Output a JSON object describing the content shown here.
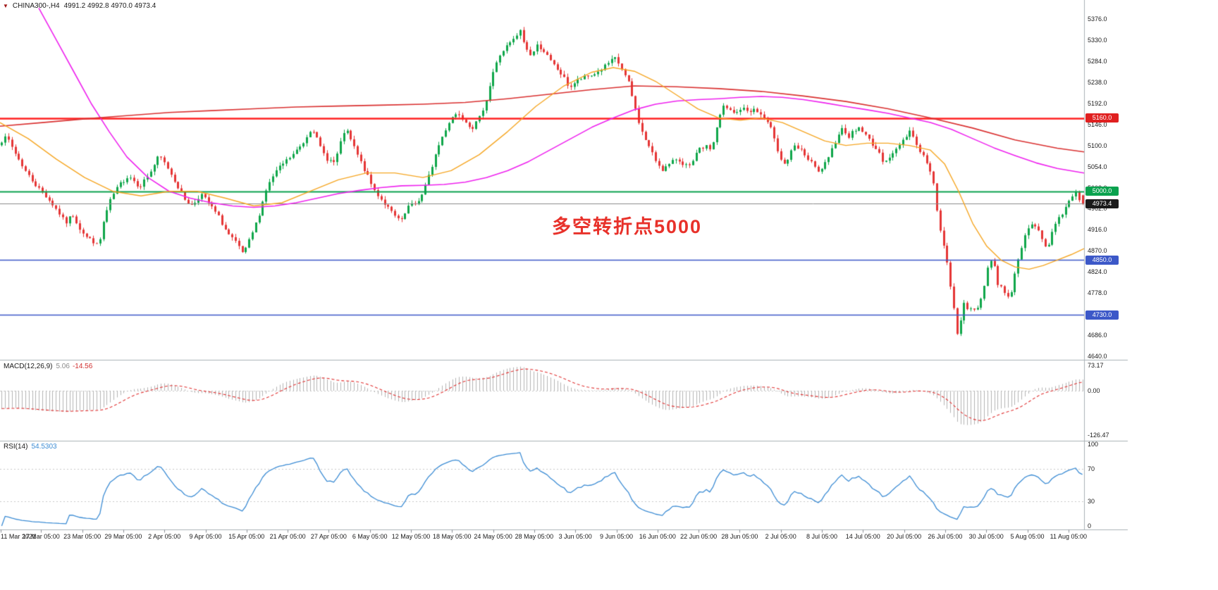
{
  "header": {
    "icon": "▼",
    "symbol": "CHINA300-,H4",
    "ohlc": "4991.2 4992.8 4970.0 4973.4"
  },
  "annotation": {
    "text": "多空转折点5000",
    "color": "#e8312a"
  },
  "price_axis": {
    "max": 5376.0,
    "min": 4640.0,
    "step": 46.0,
    "labels": [
      "5376.0",
      "5330.0",
      "5284.0",
      "5238.0",
      "5192.0",
      "5146.0",
      "5100.0",
      "5054.0",
      "5008.0",
      "4962.0",
      "4916.0",
      "4870.0",
      "4824.0",
      "4778.0",
      "4732.0",
      "4686.0",
      "4640.0"
    ]
  },
  "time_axis": {
    "labels": [
      "11 Mar 2021",
      "17 Mar 05:00",
      "23 Mar 05:00",
      "29 Mar 05:00",
      "2 Apr 05:00",
      "9 Apr 05:00",
      "15 Apr 05:00",
      "21 Apr 05:00",
      "27 Apr 05:00",
      "6 May 05:00",
      "12 May 05:00",
      "18 May 05:00",
      "24 May 05:00",
      "28 May 05:00",
      "3 Jun 05:00",
      "9 Jun 05:00",
      "16 Jun 05:00",
      "22 Jun 05:00",
      "28 Jun 05:00",
      "2 Jul 05:00",
      "8 Jul 05:00",
      "14 Jul 05:00",
      "20 Jul 05:00",
      "26 Jul 05:00",
      "30 Jul 05:00",
      "5 Aug 05:00",
      "11 Aug 05:00"
    ]
  },
  "levels": [
    {
      "name": "resistance-5160",
      "price": 5160.0,
      "label": "5160.0",
      "color": "#ff2020",
      "badge": "#e02020",
      "line_width": 2.4
    },
    {
      "name": "pivot-5000",
      "price": 5000.0,
      "label": "5000.0",
      "color": "#0aa24e",
      "badge": "#0aa24e",
      "line_width": 2.0
    },
    {
      "name": "current-price",
      "price": 4973.4,
      "label": "4973.4",
      "color": "#8a8a8a",
      "badge": "#1a1a1a",
      "line_width": 1.0
    },
    {
      "name": "support-4850",
      "price": 4850.0,
      "label": "4850.0",
      "color": "#3c58c8",
      "badge": "#3c58c8",
      "line_width": 1.6
    },
    {
      "name": "support-4730",
      "price": 4730.0,
      "label": "4730.0",
      "color": "#3c58c8",
      "badge": "#3c58c8",
      "line_width": 1.6
    }
  ],
  "indicators": {
    "macd": {
      "label": "MACD(12,26,9)",
      "value_main": "5.06",
      "value_signal": "-14.56",
      "axis": [
        "73.17",
        "0.00",
        "-126.47"
      ],
      "axis_max": 73.17,
      "axis_min": -126.47,
      "histogram_color": "#b3b3b3",
      "signal_color": "#e03030"
    },
    "rsi": {
      "label": "RSI(14)",
      "value": "54.5303",
      "period": 14,
      "axis": [
        100,
        70,
        30,
        0
      ],
      "levels": [
        70,
        30
      ],
      "line_color": "#3c8cd4"
    }
  },
  "chart_data": {
    "type": "candlestick",
    "title": "CHINA300-,H4",
    "symbol": "CHINA300-",
    "timeframe": "H4",
    "visible_range": {
      "start": "11 Mar 2021",
      "end": "11 Aug 05:00"
    },
    "ylim": [
      4640.0,
      5376.0
    ],
    "current_bar": {
      "open": 4991.2,
      "high": 4992.8,
      "low": 4970.0,
      "close": 4973.4
    },
    "key_levels": [
      5160.0,
      5000.0,
      4973.4,
      4850.0,
      4730.0
    ],
    "candles": {
      "count": 320,
      "up_color": "#0fa64a",
      "down_color": "#e53535",
      "noise": 9,
      "seed": 7
    },
    "price_path": [
      [
        0,
        5105
      ],
      [
        12,
        5118
      ],
      [
        25,
        5080
      ],
      [
        40,
        5040
      ],
      [
        55,
        5010
      ],
      [
        70,
        4985
      ],
      [
        85,
        4955
      ],
      [
        95,
        4930
      ],
      [
        105,
        4950
      ],
      [
        115,
        4920
      ],
      [
        125,
        4900
      ],
      [
        135,
        4890
      ],
      [
        142,
        4878
      ],
      [
        150,
        4940
      ],
      [
        160,
        4985
      ],
      [
        172,
        5015
      ],
      [
        185,
        5035
      ],
      [
        200,
        5010
      ],
      [
        215,
        5040
      ],
      [
        228,
        5078
      ],
      [
        240,
        5052
      ],
      [
        252,
        5018
      ],
      [
        263,
        4985
      ],
      [
        275,
        4968
      ],
      [
        287,
        4995
      ],
      [
        300,
        4970
      ],
      [
        312,
        4945
      ],
      [
        325,
        4908
      ],
      [
        338,
        4885
      ],
      [
        348,
        4862
      ],
      [
        358,
        4900
      ],
      [
        368,
        4940
      ],
      [
        380,
        5005
      ],
      [
        392,
        5040
      ],
      [
        405,
        5062
      ],
      [
        418,
        5080
      ],
      [
        432,
        5105
      ],
      [
        445,
        5142
      ],
      [
        455,
        5100
      ],
      [
        465,
        5072
      ],
      [
        477,
        5062
      ],
      [
        492,
        5138
      ],
      [
        502,
        5105
      ],
      [
        512,
        5070
      ],
      [
        522,
        5038
      ],
      [
        532,
        5005
      ],
      [
        542,
        4985
      ],
      [
        552,
        4965
      ],
      [
        562,
        4945
      ],
      [
        572,
        4935
      ],
      [
        582,
        4968
      ],
      [
        592,
        4972
      ],
      [
        602,
        4995
      ],
      [
        612,
        5040
      ],
      [
        622,
        5090
      ],
      [
        632,
        5128
      ],
      [
        642,
        5160
      ],
      [
        652,
        5172
      ],
      [
        662,
        5155
      ],
      [
        672,
        5138
      ],
      [
        682,
        5158
      ],
      [
        692,
        5200
      ],
      [
        702,
        5262
      ],
      [
        712,
        5300
      ],
      [
        722,
        5318
      ],
      [
        732,
        5332
      ],
      [
        740,
        5350
      ],
      [
        748,
        5312
      ],
      [
        756,
        5296
      ],
      [
        765,
        5320
      ],
      [
        774,
        5306
      ],
      [
        783,
        5284
      ],
      [
        792,
        5268
      ],
      [
        801,
        5250
      ],
      [
        810,
        5226
      ],
      [
        820,
        5240
      ],
      [
        830,
        5248
      ],
      [
        840,
        5252
      ],
      [
        852,
        5262
      ],
      [
        864,
        5278
      ],
      [
        875,
        5290
      ],
      [
        884,
        5268
      ],
      [
        894,
        5236
      ],
      [
        903,
        5182
      ],
      [
        912,
        5132
      ],
      [
        922,
        5100
      ],
      [
        932,
        5068
      ],
      [
        942,
        5048
      ],
      [
        952,
        5058
      ],
      [
        962,
        5072
      ],
      [
        972,
        5060
      ],
      [
        982,
        5052
      ],
      [
        992,
        5088
      ],
      [
        1002,
        5098
      ],
      [
        1012,
        5092
      ],
      [
        1020,
        5148
      ],
      [
        1028,
        5185
      ],
      [
        1036,
        5178
      ],
      [
        1045,
        5168
      ],
      [
        1054,
        5182
      ],
      [
        1063,
        5175
      ],
      [
        1072,
        5178
      ],
      [
        1081,
        5168
      ],
      [
        1090,
        5150
      ],
      [
        1099,
        5128
      ],
      [
        1107,
        5082
      ],
      [
        1114,
        5058
      ],
      [
        1121,
        5072
      ],
      [
        1128,
        5098
      ],
      [
        1135,
        5092
      ],
      [
        1142,
        5085
      ],
      [
        1149,
        5068
      ],
      [
        1156,
        5058
      ],
      [
        1163,
        5040
      ],
      [
        1170,
        5055
      ],
      [
        1177,
        5068
      ],
      [
        1184,
        5098
      ],
      [
        1191,
        5125
      ],
      [
        1198,
        5138
      ],
      [
        1206,
        5120
      ],
      [
        1214,
        5132
      ],
      [
        1222,
        5140
      ],
      [
        1230,
        5122
      ],
      [
        1238,
        5108
      ],
      [
        1246,
        5090
      ],
      [
        1254,
        5068
      ],
      [
        1262,
        5072
      ],
      [
        1270,
        5082
      ],
      [
        1278,
        5102
      ],
      [
        1286,
        5118
      ],
      [
        1294,
        5135
      ],
      [
        1302,
        5102
      ],
      [
        1310,
        5082
      ],
      [
        1318,
        5060
      ],
      [
        1326,
        5020
      ],
      [
        1332,
        4955
      ],
      [
        1338,
        4900
      ],
      [
        1344,
        4858
      ],
      [
        1350,
        4800
      ],
      [
        1356,
        4735
      ],
      [
        1361,
        4678
      ],
      [
        1365,
        4720
      ],
      [
        1370,
        4762
      ],
      [
        1375,
        4745
      ],
      [
        1381,
        4738
      ],
      [
        1387,
        4742
      ],
      [
        1393,
        4760
      ],
      [
        1399,
        4800
      ],
      [
        1405,
        4845
      ],
      [
        1411,
        4852
      ],
      [
        1417,
        4800
      ],
      [
        1423,
        4790
      ],
      [
        1429,
        4778
      ],
      [
        1435,
        4768
      ],
      [
        1441,
        4810
      ],
      [
        1447,
        4858
      ],
      [
        1453,
        4888
      ],
      [
        1459,
        4910
      ],
      [
        1466,
        4928
      ],
      [
        1473,
        4920
      ],
      [
        1480,
        4900
      ],
      [
        1487,
        4872
      ],
      [
        1494,
        4908
      ],
      [
        1501,
        4932
      ],
      [
        1508,
        4950
      ],
      [
        1515,
        4968
      ],
      [
        1521,
        4988
      ],
      [
        1527,
        4999
      ],
      [
        1532,
        4985
      ],
      [
        1538,
        4973
      ]
    ],
    "moving_averages": [
      {
        "name": "slow-ma-magenta",
        "color": "#ee22ee",
        "width": 1.6,
        "path": [
          [
            55,
            5400
          ],
          [
            80,
            5330
          ],
          [
            105,
            5260
          ],
          [
            130,
            5190
          ],
          [
            155,
            5130
          ],
          [
            180,
            5075
          ],
          [
            210,
            5030
          ],
          [
            240,
            5000
          ],
          [
            270,
            4985
          ],
          [
            300,
            4975
          ],
          [
            330,
            4968
          ],
          [
            360,
            4965
          ],
          [
            390,
            4968
          ],
          [
            420,
            4975
          ],
          [
            450,
            4985
          ],
          [
            480,
            4995
          ],
          [
            510,
            5002
          ],
          [
            540,
            5008
          ],
          [
            570,
            5012
          ],
          [
            600,
            5013
          ],
          [
            630,
            5015
          ],
          [
            660,
            5020
          ],
          [
            690,
            5030
          ],
          [
            720,
            5045
          ],
          [
            750,
            5065
          ],
          [
            780,
            5090
          ],
          [
            810,
            5115
          ],
          [
            840,
            5140
          ],
          [
            870,
            5160
          ],
          [
            900,
            5178
          ],
          [
            930,
            5190
          ],
          [
            960,
            5197
          ],
          [
            990,
            5200
          ],
          [
            1020,
            5202
          ],
          [
            1050,
            5205
          ],
          [
            1080,
            5207
          ],
          [
            1110,
            5205
          ],
          [
            1140,
            5200
          ],
          [
            1170,
            5193
          ],
          [
            1200,
            5185
          ],
          [
            1230,
            5178
          ],
          [
            1260,
            5170
          ],
          [
            1290,
            5160
          ],
          [
            1320,
            5150
          ],
          [
            1350,
            5135
          ],
          [
            1380,
            5115
          ],
          [
            1410,
            5095
          ],
          [
            1440,
            5078
          ],
          [
            1470,
            5062
          ],
          [
            1500,
            5050
          ],
          [
            1538,
            5040
          ]
        ]
      },
      {
        "name": "long-ma-red",
        "color": "#d93030",
        "width": 1.6,
        "path": [
          [
            0,
            5142
          ],
          [
            60,
            5150
          ],
          [
            120,
            5158
          ],
          [
            180,
            5165
          ],
          [
            240,
            5172
          ],
          [
            300,
            5176
          ],
          [
            360,
            5180
          ],
          [
            420,
            5184
          ],
          [
            480,
            5186
          ],
          [
            540,
            5188
          ],
          [
            600,
            5190
          ],
          [
            660,
            5194
          ],
          [
            720,
            5202
          ],
          [
            780,
            5212
          ],
          [
            840,
            5222
          ],
          [
            900,
            5230
          ],
          [
            960,
            5228
          ],
          [
            1020,
            5224
          ],
          [
            1080,
            5218
          ],
          [
            1140,
            5208
          ],
          [
            1200,
            5196
          ],
          [
            1260,
            5180
          ],
          [
            1320,
            5160
          ],
          [
            1380,
            5138
          ],
          [
            1440,
            5112
          ],
          [
            1500,
            5094
          ],
          [
            1538,
            5086
          ]
        ]
      },
      {
        "name": "mid-ma-orange",
        "color": "#f5a623",
        "width": 1.4,
        "path": [
          [
            0,
            5150
          ],
          [
            40,
            5115
          ],
          [
            80,
            5070
          ],
          [
            120,
            5030
          ],
          [
            160,
            5000
          ],
          [
            200,
            4990
          ],
          [
            240,
            5000
          ],
          [
            280,
            5000
          ],
          [
            320,
            4985
          ],
          [
            360,
            4968
          ],
          [
            400,
            4975
          ],
          [
            440,
            5000
          ],
          [
            480,
            5025
          ],
          [
            520,
            5040
          ],
          [
            560,
            5040
          ],
          [
            600,
            5030
          ],
          [
            640,
            5045
          ],
          [
            680,
            5080
          ],
          [
            720,
            5130
          ],
          [
            760,
            5185
          ],
          [
            800,
            5230
          ],
          [
            840,
            5260
          ],
          [
            870,
            5270
          ],
          [
            900,
            5262
          ],
          [
            930,
            5240
          ],
          [
            960,
            5210
          ],
          [
            990,
            5180
          ],
          [
            1020,
            5160
          ],
          [
            1050,
            5155
          ],
          [
            1080,
            5160
          ],
          [
            1110,
            5150
          ],
          [
            1140,
            5130
          ],
          [
            1170,
            5110
          ],
          [
            1200,
            5100
          ],
          [
            1230,
            5105
          ],
          [
            1260,
            5105
          ],
          [
            1290,
            5100
          ],
          [
            1320,
            5090
          ],
          [
            1340,
            5060
          ],
          [
            1360,
            5000
          ],
          [
            1380,
            4930
          ],
          [
            1400,
            4880
          ],
          [
            1420,
            4850
          ],
          [
            1440,
            4835
          ],
          [
            1460,
            4830
          ],
          [
            1480,
            4838
          ],
          [
            1500,
            4850
          ],
          [
            1520,
            4862
          ],
          [
            1538,
            4875
          ]
        ]
      }
    ]
  }
}
